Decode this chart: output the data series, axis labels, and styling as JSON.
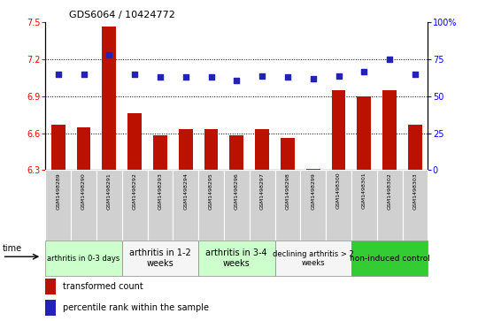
{
  "title": "GDS6064 / 10424772",
  "samples": [
    "GSM1498289",
    "GSM1498290",
    "GSM1498291",
    "GSM1498292",
    "GSM1498293",
    "GSM1498294",
    "GSM1498295",
    "GSM1498296",
    "GSM1498297",
    "GSM1498298",
    "GSM1498299",
    "GSM1498300",
    "GSM1498301",
    "GSM1498302",
    "GSM1498303"
  ],
  "bar_values": [
    6.67,
    6.65,
    7.47,
    6.76,
    6.58,
    6.63,
    6.63,
    6.58,
    6.63,
    6.56,
    6.31,
    6.95,
    6.9,
    6.95,
    6.67
  ],
  "dot_values": [
    65,
    65,
    78,
    65,
    63,
    63,
    63,
    61,
    64,
    63,
    62,
    64,
    67,
    75,
    65
  ],
  "ylim_left": [
    6.3,
    7.5
  ],
  "ylim_right": [
    0,
    100
  ],
  "yticks_left": [
    6.3,
    6.6,
    6.9,
    7.2,
    7.5
  ],
  "yticks_right": [
    0,
    25,
    50,
    75,
    100
  ],
  "bar_color": "#bb1100",
  "dot_color": "#2222bb",
  "grid_lines": [
    6.6,
    6.9,
    7.2
  ],
  "groups": [
    {
      "label": "arthritis in 0-3 days",
      "start": 0,
      "end": 3,
      "color": "#ccffcc",
      "fontsize": 6
    },
    {
      "label": "arthritis in 1-2\nweeks",
      "start": 3,
      "end": 6,
      "color": "#f5f5f5",
      "fontsize": 7
    },
    {
      "label": "arthritis in 3-4\nweeks",
      "start": 6,
      "end": 9,
      "color": "#ccffcc",
      "fontsize": 7
    },
    {
      "label": "declining arthritis > 2\nweeks",
      "start": 9,
      "end": 12,
      "color": "#f5f5f5",
      "fontsize": 6
    },
    {
      "label": "non-induced control",
      "start": 12,
      "end": 15,
      "color": "#33cc33",
      "fontsize": 6.5
    }
  ],
  "legend_bar_label": "transformed count",
  "legend_dot_label": "percentile rank within the sample",
  "time_label": "time",
  "plot_bg": "#ffffff",
  "sample_area_bg": "#d8d8d8"
}
